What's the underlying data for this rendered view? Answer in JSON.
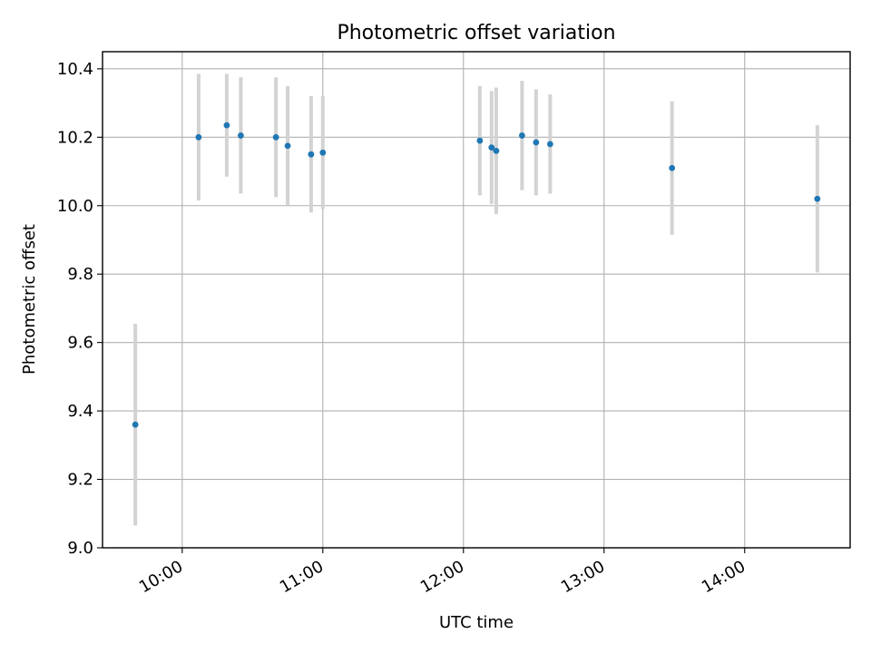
{
  "chart_data": {
    "type": "scatter",
    "title": "Photometric offset variation",
    "xlabel": "UTC time",
    "ylabel": "Photometric offset",
    "xlim": [
      "09:26",
      "14:45"
    ],
    "ylim": [
      9.0,
      10.45
    ],
    "x_ticks": [
      "10:00",
      "11:00",
      "12:00",
      "13:00",
      "14:00"
    ],
    "y_ticks": [
      "9.0",
      "9.2",
      "9.4",
      "9.6",
      "9.8",
      "10.0",
      "10.2",
      "10.4"
    ],
    "grid": true,
    "colors": {
      "point": "#1f77b4",
      "errorbar": "#d3d3d3",
      "grid": "#b0b0b0"
    },
    "points": [
      {
        "x": "09:40",
        "y": 9.36,
        "err": 0.295
      },
      {
        "x": "10:07",
        "y": 10.2,
        "err": 0.185
      },
      {
        "x": "10:19",
        "y": 10.235,
        "err": 0.15
      },
      {
        "x": "10:25",
        "y": 10.205,
        "err": 0.17
      },
      {
        "x": "10:40",
        "y": 10.2,
        "err": 0.175
      },
      {
        "x": "10:45",
        "y": 10.175,
        "err": 0.175
      },
      {
        "x": "10:55",
        "y": 10.15,
        "err": 0.17
      },
      {
        "x": "11:00",
        "y": 10.155,
        "err": 0.165
      },
      {
        "x": "12:07",
        "y": 10.19,
        "err": 0.16
      },
      {
        "x": "12:12",
        "y": 10.17,
        "err": 0.165
      },
      {
        "x": "12:14",
        "y": 10.16,
        "err": 0.185
      },
      {
        "x": "12:25",
        "y": 10.205,
        "err": 0.16
      },
      {
        "x": "12:31",
        "y": 10.185,
        "err": 0.155
      },
      {
        "x": "12:37",
        "y": 10.18,
        "err": 0.145
      },
      {
        "x": "13:29",
        "y": 10.11,
        "err": 0.195
      },
      {
        "x": "14:31",
        "y": 10.02,
        "err": 0.215
      }
    ]
  }
}
